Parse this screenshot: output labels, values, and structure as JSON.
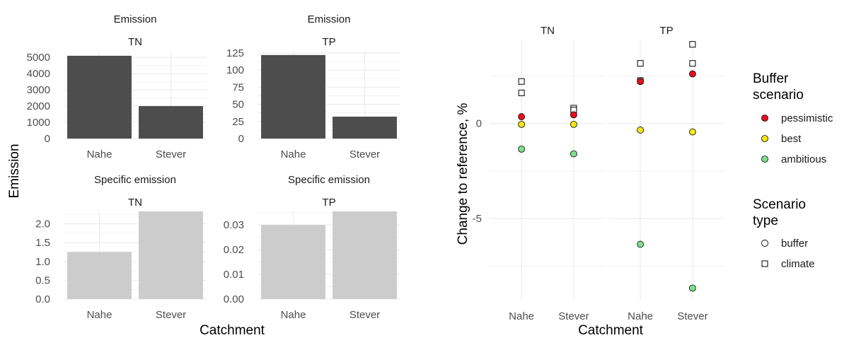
{
  "figure": {
    "left_ylabel": "Emission",
    "left_xlabel": "Catchment",
    "right_ylabel": "Change to reference, %",
    "right_xlabel": "Catchment"
  },
  "legend": {
    "buffer_title": [
      "Buffer",
      "scenario"
    ],
    "buffer_items": [
      {
        "label": "pessimistic",
        "color": "#e8101e"
      },
      {
        "label": "best",
        "color": "#f6e516"
      },
      {
        "label": "ambitious",
        "color": "#7fdf8d"
      }
    ],
    "type_title": [
      "Scenario",
      "type"
    ],
    "type_items": [
      {
        "label": "buffer",
        "shape": "circle"
      },
      {
        "label": "climate",
        "shape": "square"
      }
    ]
  },
  "colors": {
    "emission_bar": "#4d4d4d",
    "specific_bar": "#cccccc",
    "grid": "#ebebeb",
    "text": "#333333",
    "axis_text": "#4d4d4d"
  },
  "chart_data": [
    {
      "type": "bar",
      "facet_top": "Emission",
      "facet_sub": "TN",
      "categories": [
        "Nahe",
        "Stever"
      ],
      "values": [
        5100,
        2000
      ],
      "ylim": [
        0,
        5400
      ],
      "yticks": [
        "0",
        "1000",
        "2000",
        "3000",
        "4000",
        "5000"
      ],
      "ytick_values": [
        0,
        1000,
        2000,
        3000,
        4000,
        5000
      ],
      "fill": "emission"
    },
    {
      "type": "bar",
      "facet_top": "Emission",
      "facet_sub": "TP",
      "categories": [
        "Nahe",
        "Stever"
      ],
      "values": [
        122,
        32
      ],
      "ylim": [
        0,
        128
      ],
      "yticks": [
        "0",
        "25",
        "50",
        "75",
        "100",
        "125"
      ],
      "ytick_values": [
        0,
        25,
        50,
        75,
        100,
        125
      ],
      "fill": "emission"
    },
    {
      "type": "bar",
      "facet_top": "Specific emission",
      "facet_sub": "TN",
      "categories": [
        "Nahe",
        "Stever"
      ],
      "values": [
        1.25,
        2.33
      ],
      "ylim": [
        0,
        2.33
      ],
      "yticks": [
        "0.0",
        "0.5",
        "1.0",
        "1.5",
        "2.0"
      ],
      "ytick_values": [
        0,
        0.5,
        1.0,
        1.5,
        2.0
      ],
      "fill": "specific"
    },
    {
      "type": "bar",
      "facet_top": "Specific emission",
      "facet_sub": "TP",
      "categories": [
        "Nahe",
        "Stever"
      ],
      "values": [
        0.03,
        0.0355
      ],
      "ylim": [
        0,
        0.0355
      ],
      "yticks": [
        "0.00",
        "0.01",
        "0.02",
        "0.03"
      ],
      "ytick_values": [
        0,
        0.01,
        0.02,
        0.03
      ],
      "fill": "specific"
    },
    {
      "type": "scatter",
      "facets": [
        "TN",
        "TP"
      ],
      "categories": [
        "Nahe",
        "Stever"
      ],
      "ylim": [
        -9.3,
        4.4
      ],
      "yticks": [
        "0",
        "-5"
      ],
      "ytick_values": [
        0,
        -5
      ],
      "points": [
        {
          "facet": "TN",
          "x": "Nahe",
          "y": 2.2,
          "shape": "square"
        },
        {
          "facet": "TN",
          "x": "Nahe",
          "y": 1.6,
          "shape": "square"
        },
        {
          "facet": "TN",
          "x": "Nahe",
          "y": 0.35,
          "shape": "circle",
          "scenario": "pessimistic"
        },
        {
          "facet": "TN",
          "x": "Nahe",
          "y": -0.05,
          "shape": "circle",
          "scenario": "best"
        },
        {
          "facet": "TN",
          "x": "Nahe",
          "y": -1.35,
          "shape": "circle",
          "scenario": "ambitious"
        },
        {
          "facet": "TN",
          "x": "Stever",
          "y": 0.8,
          "shape": "square"
        },
        {
          "facet": "TN",
          "x": "Stever",
          "y": 0.7,
          "shape": "square"
        },
        {
          "facet": "TN",
          "x": "Stever",
          "y": 0.45,
          "shape": "circle",
          "scenario": "pessimistic"
        },
        {
          "facet": "TN",
          "x": "Stever",
          "y": -0.05,
          "shape": "circle",
          "scenario": "best"
        },
        {
          "facet": "TN",
          "x": "Stever",
          "y": -1.6,
          "shape": "circle",
          "scenario": "ambitious"
        },
        {
          "facet": "TP",
          "x": "Nahe",
          "y": 3.15,
          "shape": "square"
        },
        {
          "facet": "TP",
          "x": "Nahe",
          "y": 2.25,
          "shape": "square"
        },
        {
          "facet": "TP",
          "x": "Nahe",
          "y": 2.2,
          "shape": "circle",
          "scenario": "pessimistic"
        },
        {
          "facet": "TP",
          "x": "Nahe",
          "y": -0.35,
          "shape": "circle",
          "scenario": "best"
        },
        {
          "facet": "TP",
          "x": "Nahe",
          "y": -6.35,
          "shape": "circle",
          "scenario": "ambitious"
        },
        {
          "facet": "TP",
          "x": "Stever",
          "y": 4.15,
          "shape": "square"
        },
        {
          "facet": "TP",
          "x": "Stever",
          "y": 3.15,
          "shape": "square"
        },
        {
          "facet": "TP",
          "x": "Stever",
          "y": 2.6,
          "shape": "circle",
          "scenario": "pessimistic"
        },
        {
          "facet": "TP",
          "x": "Stever",
          "y": -0.45,
          "shape": "circle",
          "scenario": "best"
        },
        {
          "facet": "TP",
          "x": "Stever",
          "y": -8.65,
          "shape": "circle",
          "scenario": "ambitious"
        }
      ]
    }
  ]
}
